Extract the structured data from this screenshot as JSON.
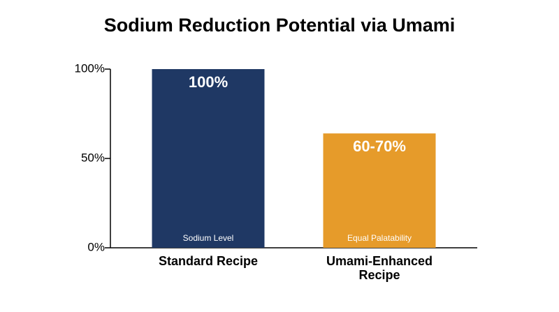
{
  "chart_data": {
    "type": "bar",
    "title": "Sodium Reduction Potential via Umami",
    "categories": [
      "Standard Recipe",
      "Umami-Enhanced Recipe"
    ],
    "values": [
      100,
      64
    ],
    "value_labels": [
      "100%",
      "60-70%"
    ],
    "bar_labels": [
      "Sodium Level",
      "Equal Palatability"
    ],
    "colors": [
      "#1f3864",
      "#e69b2a"
    ],
    "ylim": [
      0,
      100
    ],
    "yticks": [
      {
        "value": 0,
        "label": "0%"
      },
      {
        "value": 50,
        "label": "50%"
      },
      {
        "value": 100,
        "label": "100%"
      }
    ],
    "grid": false
  }
}
